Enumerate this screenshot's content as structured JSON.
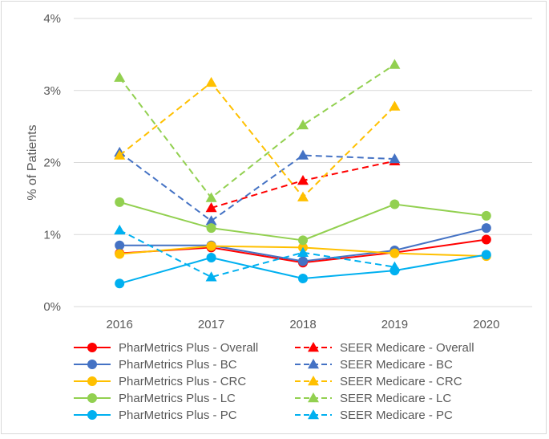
{
  "chart_data": {
    "type": "line",
    "title": "",
    "xlabel": "",
    "ylabel": "% of Patients",
    "ylim": [
      0,
      4
    ],
    "y_ticks": [
      0,
      1,
      2,
      3,
      4
    ],
    "y_tick_labels": [
      "0%",
      "1%",
      "2%",
      "3%",
      "4%"
    ],
    "categories": [
      "2016",
      "2017",
      "2018",
      "2019",
      "2020"
    ],
    "grid": true,
    "legend_position": "bottom",
    "series": [
      {
        "name": "PharMetrics Plus - Overall",
        "color": "#ff0000",
        "dash": "solid",
        "marker": "circle",
        "values": [
          0.74,
          0.82,
          0.61,
          0.75,
          0.93
        ]
      },
      {
        "name": "SEER Medicare - Overall",
        "color": "#ff0000",
        "dash": "dashed",
        "marker": "triangle",
        "values": [
          null,
          1.37,
          1.75,
          2.02,
          null
        ]
      },
      {
        "name": "PharMetrics Plus - BC",
        "color": "#4472c4",
        "dash": "solid",
        "marker": "circle",
        "values": [
          0.85,
          0.85,
          0.63,
          0.78,
          1.09
        ]
      },
      {
        "name": "SEER Medicare - BC",
        "color": "#4472c4",
        "dash": "dashed",
        "marker": "triangle",
        "values": [
          2.14,
          1.19,
          2.1,
          2.05,
          null
        ]
      },
      {
        "name": "PharMetrics Plus - CRC",
        "color": "#ffc000",
        "dash": "solid",
        "marker": "circle",
        "values": [
          0.73,
          0.84,
          0.82,
          0.74,
          0.7
        ]
      },
      {
        "name": "SEER Medicare - CRC",
        "color": "#ffc000",
        "dash": "dashed",
        "marker": "triangle",
        "values": [
          2.1,
          3.11,
          1.52,
          2.78,
          null
        ]
      },
      {
        "name": "PharMetrics Plus - LC",
        "color": "#92d050",
        "dash": "solid",
        "marker": "circle",
        "values": [
          1.45,
          1.09,
          0.92,
          1.42,
          1.26
        ]
      },
      {
        "name": "SEER Medicare - LC",
        "color": "#92d050",
        "dash": "dashed",
        "marker": "triangle",
        "values": [
          3.18,
          1.51,
          2.52,
          3.36,
          null
        ]
      },
      {
        "name": "PharMetrics Plus - PC",
        "color": "#00b0f0",
        "dash": "solid",
        "marker": "circle",
        "values": [
          0.32,
          0.68,
          0.39,
          0.5,
          0.72
        ]
      },
      {
        "name": "SEER Medicare - PC",
        "color": "#00b0f0",
        "dash": "dashed",
        "marker": "triangle",
        "values": [
          1.06,
          0.41,
          0.75,
          0.55,
          null
        ]
      }
    ]
  }
}
